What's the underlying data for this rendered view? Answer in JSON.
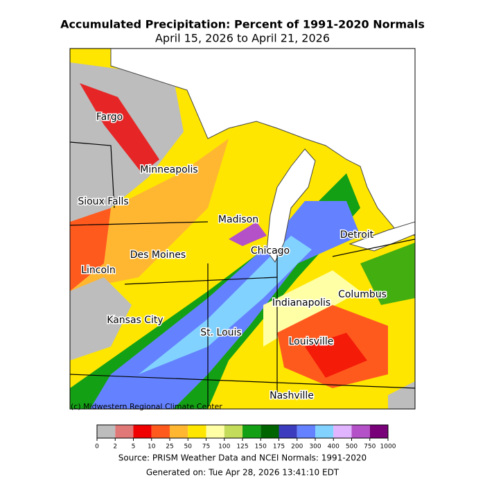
{
  "header": {
    "title": "Accumulated Precipitation: Percent of 1991-2020 Normals",
    "subtitle": "April 15, 2026 to April 21, 2026"
  },
  "map": {
    "cities": [
      {
        "label": "Fargo"
      },
      {
        "label": "Minneapolis"
      },
      {
        "label": "Sioux Falls"
      },
      {
        "label": "Madison"
      },
      {
        "label": "Detroit"
      },
      {
        "label": "Chicago"
      },
      {
        "label": "Des Moines"
      },
      {
        "label": "Lincoln"
      },
      {
        "label": "Columbus"
      },
      {
        "label": "Indianapolis"
      },
      {
        "label": "Kansas City"
      },
      {
        "label": "St. Louis"
      },
      {
        "label": "Louisville"
      },
      {
        "label": "Nashville"
      }
    ],
    "credit": "(c) Midwestern Regional Climate Center"
  },
  "legend": {
    "ticks": [
      0,
      2,
      5,
      10,
      25,
      50,
      75,
      100,
      125,
      150,
      175,
      200,
      300,
      400,
      500,
      750,
      1000
    ],
    "colors": [
      "#bdbdbd",
      "#e07878",
      "#f00000",
      "#ff5a1e",
      "#ffb732",
      "#ffe600",
      "#ffffa5",
      "#c3dc5a",
      "#14a014",
      "#006400",
      "#3c3cbe",
      "#6482ff",
      "#82d2ff",
      "#e1b4ff",
      "#b450c8",
      "#780078"
    ]
  },
  "footer": {
    "source": "Source: PRISM Weather Data and NCEI Normals: 1991-2020",
    "generated": "Generated on: Tue Apr 28, 2026 13:41:10 EDT"
  }
}
